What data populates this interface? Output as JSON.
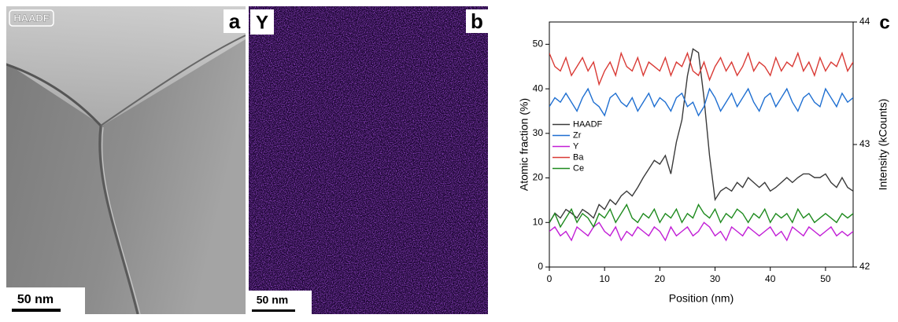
{
  "panels": {
    "a": {
      "tag": "HAADF",
      "letter": "a",
      "scale_bar": "50 nm"
    },
    "b": {
      "element": "Y",
      "letter": "b",
      "scale_bar": "50 nm"
    },
    "c": {
      "letter": "c"
    }
  },
  "chart_data": {
    "type": "line",
    "x_label": "Position (nm)",
    "y_label": "Atomic fraction (%)",
    "y2_label": "Intensity (kCounts)",
    "x": [
      0,
      1,
      2,
      3,
      4,
      5,
      6,
      7,
      8,
      9,
      10,
      11,
      12,
      13,
      14,
      15,
      16,
      17,
      18,
      19,
      20,
      21,
      22,
      23,
      24,
      25,
      26,
      27,
      28,
      29,
      30,
      31,
      32,
      33,
      34,
      35,
      36,
      37,
      38,
      39,
      40,
      41,
      42,
      43,
      44,
      45,
      46,
      47,
      48,
      49,
      50,
      51,
      52,
      53,
      54,
      55
    ],
    "xlim": [
      0,
      55
    ],
    "xticks": [
      0,
      10,
      20,
      30,
      40,
      50
    ],
    "ylim": [
      0,
      55
    ],
    "yticks": [
      0,
      10,
      20,
      30,
      40,
      50
    ],
    "y2lim": [
      42,
      44
    ],
    "y2ticks": [
      42,
      43,
      44
    ],
    "legend": "left",
    "series": [
      {
        "name": "HAADF",
        "color": "#3a3a3a",
        "axis": "y2",
        "values": [
          42.36,
          42.44,
          42.4,
          42.47,
          42.44,
          42.4,
          42.47,
          42.44,
          42.4,
          42.51,
          42.47,
          42.55,
          42.51,
          42.58,
          42.62,
          42.58,
          42.65,
          42.73,
          42.8,
          42.87,
          42.84,
          42.91,
          42.76,
          43.02,
          43.2,
          43.56,
          43.78,
          43.75,
          43.38,
          42.91,
          42.55,
          42.62,
          42.65,
          42.62,
          42.69,
          42.65,
          42.73,
          42.69,
          42.65,
          42.69,
          42.62,
          42.65,
          42.69,
          42.73,
          42.69,
          42.73,
          42.76,
          42.76,
          42.73,
          42.73,
          42.76,
          42.69,
          42.65,
          42.73,
          42.65,
          42.62
        ]
      },
      {
        "name": "Zr",
        "color": "#1f6fd1",
        "values": [
          36,
          38,
          37,
          39,
          37,
          35,
          38,
          40,
          37,
          36,
          34,
          38,
          39,
          37,
          36,
          38,
          35,
          37,
          39,
          36,
          38,
          37,
          35,
          38,
          39,
          36,
          37,
          34,
          36,
          40,
          38,
          35,
          37,
          39,
          36,
          38,
          40,
          37,
          35,
          38,
          39,
          36,
          38,
          40,
          37,
          35,
          38,
          39,
          37,
          36,
          40,
          38,
          36,
          39,
          37,
          38
        ]
      },
      {
        "name": "Y",
        "color": "#c21fd6",
        "values": [
          8,
          9,
          7,
          8,
          6,
          9,
          8,
          7,
          9,
          10,
          8,
          7,
          9,
          6,
          8,
          7,
          9,
          8,
          7,
          9,
          8,
          6,
          9,
          7,
          8,
          9,
          7,
          8,
          10,
          9,
          7,
          8,
          6,
          9,
          8,
          7,
          9,
          8,
          7,
          8,
          9,
          7,
          8,
          6,
          9,
          8,
          7,
          9,
          8,
          7,
          8,
          9,
          7,
          8,
          7,
          8
        ]
      },
      {
        "name": "Ba",
        "color": "#d93a35",
        "values": [
          48,
          45,
          44,
          47,
          43,
          45,
          47,
          44,
          46,
          41,
          44,
          46,
          43,
          48,
          45,
          44,
          47,
          43,
          46,
          45,
          44,
          47,
          43,
          46,
          45,
          48,
          44,
          43,
          46,
          42,
          45,
          47,
          44,
          46,
          43,
          45,
          48,
          44,
          46,
          45,
          43,
          47,
          44,
          46,
          45,
          48,
          44,
          46,
          43,
          47,
          44,
          46,
          45,
          48,
          44,
          46
        ]
      },
      {
        "name": "Ce",
        "color": "#1e8a1e",
        "values": [
          10,
          12,
          9,
          11,
          13,
          10,
          12,
          11,
          9,
          12,
          11,
          13,
          10,
          12,
          14,
          11,
          10,
          12,
          11,
          13,
          10,
          12,
          11,
          13,
          10,
          12,
          11,
          14,
          12,
          11,
          13,
          10,
          12,
          11,
          13,
          12,
          10,
          12,
          11,
          13,
          10,
          12,
          11,
          12,
          10,
          13,
          11,
          12,
          10,
          11,
          12,
          11,
          10,
          12,
          11,
          12
        ]
      }
    ]
  }
}
